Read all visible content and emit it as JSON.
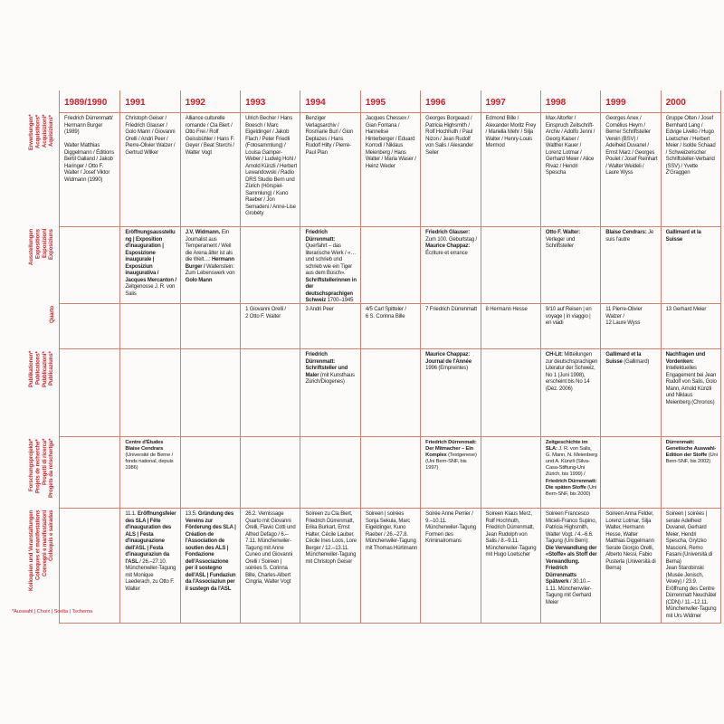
{
  "palette": {
    "accent_red": "#c8202a",
    "grid_line": "#cf8172",
    "text": "#222222"
  },
  "years": [
    "1989/1990",
    "1991",
    "1992",
    "1993",
    "1994",
    "1995",
    "1996",
    "1997",
    "1998",
    "1999",
    "2000"
  ],
  "row_ids": [
    "erwerbungen",
    "ausstellungen",
    "quarto",
    "publikationen",
    "forschungsprojekte",
    "kolloquien"
  ],
  "row_labels": [
    "Erwerbungen*\nAcquisitions*\nAcquisizioni*\nAquisiziuns*",
    "Ausstellungen\nExpositions\nEsposizioni\nExposiziuns",
    "Quarto",
    "Publikationen*\nPublications*\nPubblicazioni*\nPublicaziuns*",
    "Forschungsprojekte*\nProjets de recherche*\nProgetti di ricerca*\nProgets da retschertga*",
    "Kolloquien und Veranstaltungen\nColloques et manifestations\nConvegni e manifestazioni\nColloquis e sairadas"
  ],
  "footnote": "*Auswahl | Choix | Scelta | Tscherna",
  "rows": [
    {
      "cells": [
        [
          {
            "t": "Friedrich Dürrenmatt/ Hermann Burger (1989)\n\nWalter Matthias Diggelmann / Éditions Bertil Galland / Jakob Haringer / Otto F. Walter / Josef Viktor Widmann (1990)"
          }
        ],
        [
          {
            "t": "Christoph Geiser / Friedrich Glauser / Golo Mann / Giovanni Orelli / Andri Peer / Pierre-Olivier Walzer / Gertrud Wilker"
          }
        ],
        [
          {
            "t": "Alliance culturelle romande / Cla Biert / Otto Frei / Rolf Geissbühler / Hans F. Geyer / Beat Sterchi / Walter Vogt"
          }
        ],
        [
          {
            "t": "Ulrich Becher / Hans Boesch / Marc Eigeldinger / Jakob Flach / Peter Friedli (Fotosammlung) / Louisa Gamper-Weber / Ludwig Hohl / Arnold Künzli / Herbert Lewandowski / Radio DRS Studio Bern und Zürich (Hörspiel-Sammlung) / Kuno Raeber / Jon Semadeni / Anne-Lise Grobéty"
          }
        ],
        [
          {
            "t": "Benziger Verlagsarchiv / Rosmarie Buri / Gion Deplazes / Hans Rudolf Hilty / Pierre-Paul Plan"
          }
        ],
        [
          {
            "t": "Jacques Chessex / Gian Fontana / Hannelise Hinterberger / Eduard Korrodi / Niklaus Meienberg / Hans Walter / Maria Waser / Heinz Weder"
          }
        ],
        [
          {
            "t": "Georges Borgeaud / Patricia Highsmith / Rolf Hochhuth / Paul Nizon / Jean Rudolf von Salis / Alexander Seiler"
          }
        ],
        [
          {
            "t": "Edmond Bille / Alexander Moritz Frey / Mariella Mehr / Silja Walter / Henry-Louis Mermod"
          }
        ],
        [
          {
            "t": "Max Altorfer / Einspruch Zeitschrift-Archiv / Adolfo Jenni / Georg Kaiser / Walther Kauer / Lorenz Lotmar / Gerhard Meier / Alice Rivaz / Hendri Spescha"
          }
        ],
        [
          {
            "t": "Georges Anex / Cornélius Heym / Berner Schriftsteller Verein (BSV) / Adelheid Duvanel / Ernst Marz / Georges Poulet / Josef Reinhart / Walter Weideli / Laure Wyss"
          }
        ],
        [
          {
            "t": "Gruppe Olten / Josef Bernhard Lang / Edvige Livello / Hugo Loetscher / Herbert Meier / Isolde Schaad / Schweizerischer Schriftsteller-Verband (SSV) / Yvette Z'Graggen"
          }
        ]
      ]
    },
    {
      "cells": [
        [],
        [
          {
            "t": "Eröffnungsausstellung | Exposition d'inauguration | Esposizione inaugurale | Exposiziun inaugurativa / Jacques Mercanton /",
            "b": true
          },
          {
            "t": "\nZeitgenosse J. R. von Salis"
          }
        ],
        [
          {
            "t": "J.V. Widmann.",
            "b": true
          },
          {
            "t": " Ein Journalist aus Temperament / Weil die Arena älter ist als die Welt…: "
          },
          {
            "t": "Hermann Burger /",
            "b": true
          },
          {
            "t": " Wallenstein: Zum Lebenswerk von "
          },
          {
            "t": "Golo Mann",
            "b": true
          }
        ],
        [],
        [
          {
            "t": "Friedrich Dürrenmatt:",
            "b": true
          },
          {
            "t": " Querfahrt – das literarische Werk / «… und schrieb und schrieb wie ein Tiger aus dem Busch». "
          },
          {
            "t": "Schriftstellerinnen in der deutschsprachigen Schweiz",
            "b": true
          },
          {
            "t": " 1700–1945"
          }
        ],
        [],
        [
          {
            "t": "Friedrich Glauser:",
            "b": true
          },
          {
            "t": " Zum 100. Geburtstag / "
          },
          {
            "t": "Maurice Chappaz:",
            "b": true
          },
          {
            "t": " Écriture et errance"
          }
        ],
        [],
        [
          {
            "t": "Otto F. Walter:",
            "b": true
          },
          {
            "t": " Verleger und Schriftsteller"
          }
        ],
        [
          {
            "t": "Blaise Cendrars:",
            "b": true
          },
          {
            "t": " Je suis l'autre"
          }
        ],
        [
          {
            "t": "Gallimard et la Suisse",
            "b": true
          }
        ]
      ]
    },
    {
      "cells": [
        [],
        [],
        [],
        [
          {
            "t": "1 Giovanni Orelli /\n2 Otto F. Walter"
          }
        ],
        [
          {
            "t": "3 Andri Peer"
          }
        ],
        [
          {
            "t": "4/5 Carl Spitteler /\n6 S. Corinna Bille"
          }
        ],
        [
          {
            "t": "7 Friedrich Dürrenmatt"
          }
        ],
        [
          {
            "t": "8 Hermann Hesse"
          }
        ],
        [
          {
            "t": "9/10 auf Reisen | en voyage | in viaggio | en viadi"
          }
        ],
        [
          {
            "t": "11 Pierre-Olivier Walzer /\n12 Laure Wyss"
          }
        ],
        [
          {
            "t": "13 Gerhard Meier"
          }
        ]
      ]
    },
    {
      "cells": [
        [],
        [],
        [],
        [],
        [
          {
            "t": "Friedrich Dürrenmatt: Schriftsteller und Maler",
            "b": true
          },
          {
            "t": " (mit Kunsthaus Zürich/Diogenes)"
          }
        ],
        [],
        [
          {
            "t": "Maurice Chappaz: Journal de l'Année",
            "b": true
          },
          {
            "t": " 1996 (Empreintes)"
          }
        ],
        [],
        [
          {
            "t": "CH-Lit:",
            "b": true
          },
          {
            "t": " Mitteilungen zur deutschsprachigen Literatur der Schweiz, No 1 (Juni 1998), erscheint bis No 14 (Dez. 2006)"
          }
        ],
        [
          {
            "t": "Gallimard et la Suisse",
            "b": true
          },
          {
            "t": " (Gallimard)"
          }
        ],
        [
          {
            "t": "Nachfragen und Vordenken:",
            "b": true
          },
          {
            "t": " Intellektuelles Engagement bei Jean Rudolf von Salis, Golo Mann, Arnold Künzli und Niklaus Meienberg (Chronos)"
          }
        ]
      ]
    },
    {
      "cells": [
        [],
        [
          {
            "t": "Centre d'Études Blaise Cendrars",
            "b": true
          },
          {
            "t": " (Université de Berne / fonds national, depuis 1986)"
          }
        ],
        [],
        [],
        [],
        [],
        [
          {
            "t": "Friedrich Dürrenmatt: Der Mitmacher – Ein Komplex",
            "b": true
          },
          {
            "t": " (Textgenese) (Uni Bern-SNF, bis 1997)"
          }
        ],
        [],
        [
          {
            "t": "Zeitgeschichte im SLA:",
            "b": true
          },
          {
            "t": " J. R. von Salis, G. Mann, N. Meienberg und A. Künzli (Silva-Casa-Stiftung-Uni Zürich, bis 1999) / "
          },
          {
            "t": "Friedrich Dürrenmatt: Die späten Stoffe",
            "b": true
          },
          {
            "t": " (Uni Bern-SNF, bis 2000)"
          }
        ],
        [],
        [
          {
            "t": "Dürrenmatt: Genetische Auswahl-Edition der Stoffe",
            "b": true
          },
          {
            "t": " (Uni Bern-SNF, bis 2002)"
          }
        ]
      ]
    },
    {
      "cells": [
        [],
        [
          {
            "t": "11.1. "
          },
          {
            "t": "Eröffnungsfeier des SLA | Fête d'inauguration des ALS | Festa d'inaugurazione dell'ASL | Festa d'inauguraziun da l'ASL",
            "b": true
          },
          {
            "t": " / 26.–27.10. Münchenwiler-Tagung mit Monique Laederach, zu Otto F. Walter"
          }
        ],
        [
          {
            "t": "13.5. "
          },
          {
            "t": "Gründung des Vereins zur Förderung des SLA | Création de l'Association de soutien des ALS | Fondazione dell'Associazione per il sostegno dell'ASL | Fundaziun da l'Associaziun per il sustegn da l'ASL",
            "b": true
          }
        ],
        [
          {
            "t": "26.2. Vernissage Quarto mit Giovanni Orelli, Flavio Cotti und Alfred Defago / 6.–7.11. Münchenwiler-Tagung mit Anne Cuneo und Giovanni Orelli / Soireen | soirées S. Corinna Bille, Charles-Albert Cingria, Walter Vogt"
          }
        ],
        [
          {
            "t": "Soireen zu Cla Biert, Friedrich Dürrenmatt, Erika Burkart, Ernst Halter, Cécile Lauber, Cécile Ines Loos, Lore Berger / 12.–13.11. Münchenwiler-Tagung mit Christoph Geiser"
          }
        ],
        [
          {
            "t": "Soireen | soirées Sonja Sekula, Marc Eigeldinger, Kuno Raeber / 26.–27.8. Münchenwiler-Tagung mit Thomas Hürlimann"
          }
        ],
        [
          {
            "t": "Soirée Anne Perrier / 9.–10.11. Münchenwiler-Tagung Formen des Kriminalromans"
          }
        ],
        [
          {
            "t": "Soireen Klaus Merz, Rolf Hochhuth, Friedrich Dürrenmatt, Jean Rudolph von Salis / 8.–9.11. Münchenwiler-Tagung mit Hugo Loetscher"
          }
        ],
        [
          {
            "t": "Soireen Francesco Micieli-Franco Supino, Patricia Highsmith, Walter Vogt. / 4.–6.6. Tagung (Uni Bern): "
          },
          {
            "t": "Die Verwandlung der «Stoffe» als Stoff der Verwandlung. Friedrich Dürrenmatts Spätwerk",
            "b": true
          },
          {
            "t": " / 30.10.–1.11. Münchenwiler-Tagung mit Gerhard Meier"
          }
        ],
        [
          {
            "t": "Soireen Anna Felder, Lorenz Lotmar, Silja Walter, Hermann Hesse, Walter Matthias Diggelmann\nSerate Giorgio Orelli, Alberto Nessi, Fabio Pusterla (Università di Berna)"
          }
        ],
        [
          {
            "t": "Soireen | soirées | serate Adelheid Duvanel, Gerhard Meier, Hendri Spescha, Grytzko Mascioni, Remo Fasani (Università di Berna)\nJean Starobinski (Musée Jenisch, Vevey) / 23.9. Eröffnung des Centre Dürrenmatt Neuchâtel (CDN) / 11.–12.11. Münchenwiler-Tagung mit Urs Widmer"
          }
        ]
      ]
    }
  ]
}
